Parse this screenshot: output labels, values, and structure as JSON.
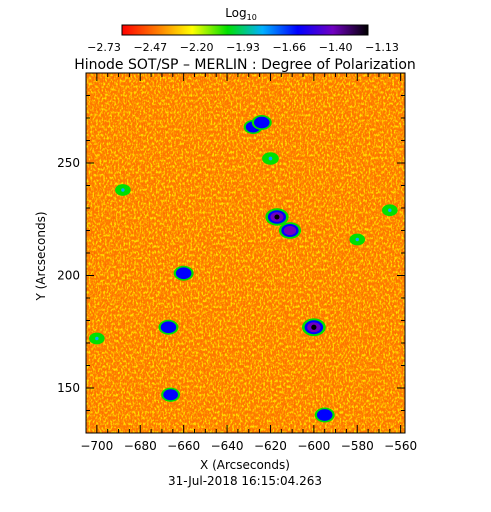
{
  "chart_data": {
    "type": "heatmap",
    "title": "Hinode SOT/SP – MERLIN : Degree of Polarization",
    "colorbar": {
      "label": "Log",
      "label_subscript": "10",
      "tick_labels": [
        "−2.73",
        "−2.47",
        "−2.20",
        "−1.93",
        "−1.66",
        "−1.40",
        "−1.13"
      ],
      "range": [
        -2.73,
        -1.13
      ],
      "colormap": [
        "#ff0000",
        "#ff7a00",
        "#ffff00",
        "#00e000",
        "#00b0ff",
        "#0000ff",
        "#7000c0",
        "#000000"
      ]
    },
    "xlabel": "X (Arcseconds)",
    "ylabel": "Y (Arcseconds)",
    "xlim": [
      -705,
      -558
    ],
    "ylim": [
      130,
      290
    ],
    "xticks": [
      -700,
      -680,
      -660,
      -640,
      -620,
      -600,
      -580,
      -560
    ],
    "xtick_labels": [
      "−700",
      "−680",
      "−660",
      "−640",
      "−620",
      "−600",
      "−580",
      "−560"
    ],
    "yticks": [
      150,
      200,
      250
    ],
    "ytick_labels": [
      "150",
      "200",
      "250"
    ],
    "background_level": -2.6,
    "features": [
      {
        "x": -617,
        "y": 226,
        "value": -1.2
      },
      {
        "x": -611,
        "y": 220,
        "value": -1.3
      },
      {
        "x": -600,
        "y": 177,
        "value": -1.15
      },
      {
        "x": -628,
        "y": 266,
        "value": -1.6
      },
      {
        "x": -624,
        "y": 268,
        "value": -1.5
      },
      {
        "x": -660,
        "y": 201,
        "value": -1.5
      },
      {
        "x": -667,
        "y": 177,
        "value": -1.5
      },
      {
        "x": -666,
        "y": 147,
        "value": -1.6
      },
      {
        "x": -595,
        "y": 138,
        "value": -1.5
      },
      {
        "x": -688,
        "y": 238,
        "value": -1.9
      },
      {
        "x": -700,
        "y": 172,
        "value": -1.9
      },
      {
        "x": -565,
        "y": 229,
        "value": -1.9
      },
      {
        "x": -620,
        "y": 252,
        "value": -1.8
      },
      {
        "x": -580,
        "y": 216,
        "value": -1.9
      }
    ],
    "date_label": "31-Jul-2018 16:15:04.263"
  }
}
